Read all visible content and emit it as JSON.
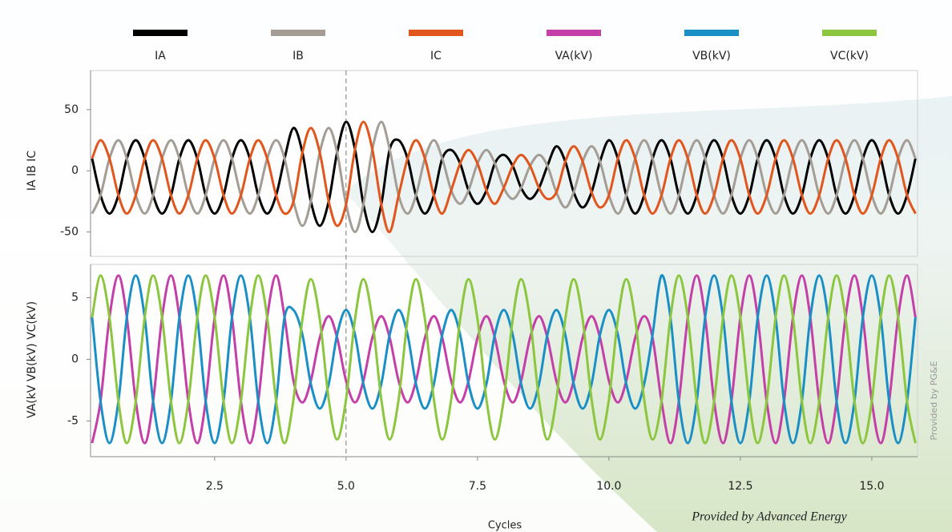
{
  "chart_data": [
    {
      "type": "line",
      "ylabel": "IA IB IC",
      "x": [
        0.17,
        0.33,
        0.5,
        0.67,
        0.83,
        1,
        1.17,
        1.33,
        1.5,
        1.67,
        1.83,
        2,
        2.17,
        2.33,
        2.5,
        2.67,
        2.83,
        3,
        3.17,
        3.33,
        3.5,
        3.67,
        3.83,
        4,
        4.17,
        4.33,
        4.5,
        4.67,
        4.83,
        5,
        5.17,
        5.33,
        5.5,
        5.67,
        5.83,
        6,
        6.17,
        6.33,
        6.5,
        6.67,
        6.83,
        7,
        7.17,
        7.33,
        7.5,
        7.67,
        7.83,
        8,
        8.17,
        8.33,
        8.5,
        8.67,
        8.83,
        9,
        9.17,
        9.33,
        9.5,
        9.67,
        9.83,
        10,
        10.17,
        10.33,
        10.5,
        10.67,
        10.83,
        11,
        11.17,
        11.33,
        11.5,
        11.67,
        11.83,
        12,
        12.17,
        12.33,
        12.5,
        12.67,
        12.83,
        13,
        13.17,
        13.33,
        13.5,
        13.67,
        13.83,
        14,
        14.17,
        14.33,
        14.5,
        14.67,
        14.83,
        15,
        15.17,
        15.33,
        15.5,
        15.67,
        15.83
      ],
      "series": [
        {
          "name": "IA",
          "color": "#000000",
          "values": [
            10,
            -20,
            -35,
            -20,
            10,
            25,
            10,
            -20,
            -35,
            -20,
            10,
            25,
            10,
            -20,
            -35,
            -20,
            10,
            25,
            10,
            -20,
            -35,
            -20,
            10,
            35,
            15,
            -25,
            -45,
            -25,
            15,
            40,
            17.5,
            -27.5,
            -50,
            -27.5,
            17.5,
            25,
            10,
            -20,
            -35,
            -20,
            10,
            17,
            6,
            -16,
            -27,
            -16,
            6,
            13,
            4,
            -14,
            -23,
            -14,
            4,
            20,
            7.5,
            -17.5,
            -30,
            -17.5,
            7.5,
            25,
            10,
            -20,
            -35,
            -20,
            10,
            25,
            10,
            -20,
            -35,
            -20,
            10,
            25,
            10,
            -20,
            -35,
            -20,
            10,
            25,
            10,
            -20,
            -35,
            -20,
            10,
            25,
            10,
            -20,
            -35,
            -20,
            10,
            25,
            10,
            -20,
            -35,
            -20,
            10
          ]
        },
        {
          "name": "IB",
          "color": "#a39d95",
          "values": [
            -35,
            -20,
            10,
            25,
            10,
            -20,
            -35,
            -20,
            10,
            25,
            10,
            -20,
            -35,
            -20,
            10,
            25,
            10,
            -20,
            -35,
            -20,
            10,
            25,
            10,
            -25,
            -45,
            -25,
            15,
            35,
            15,
            -27.5,
            -50,
            -27.5,
            17.5,
            40,
            17.5,
            -20,
            -35,
            -20,
            10,
            25,
            10,
            -16,
            -27,
            -16,
            6,
            17,
            6,
            -14,
            -23,
            -14,
            4,
            13,
            4,
            -17.5,
            -30,
            -17.5,
            7.5,
            20,
            7.5,
            -20,
            -35,
            -20,
            10,
            25,
            10,
            -20,
            -35,
            -20,
            10,
            25,
            10,
            -20,
            -35,
            -20,
            10,
            25,
            10,
            -20,
            -35,
            -20,
            10,
            25,
            10,
            -20,
            -35,
            -20,
            10,
            25,
            10,
            -20,
            -35,
            -20,
            10,
            25,
            10
          ]
        },
        {
          "name": "IC",
          "color": "#e0561c",
          "values": [
            10,
            25,
            10,
            -20,
            -35,
            -20,
            10,
            25,
            10,
            -20,
            -35,
            -20,
            10,
            25,
            10,
            -20,
            -35,
            -20,
            10,
            25,
            10,
            -20,
            -35,
            -25,
            15,
            35,
            15,
            -25,
            -45,
            -27.5,
            17.5,
            40,
            17.5,
            -27.5,
            -50,
            -20,
            10,
            25,
            10,
            -20,
            -35,
            -16,
            6,
            17,
            6,
            -16,
            -27,
            -14,
            4,
            13,
            4,
            -14,
            -23,
            -17.5,
            7.5,
            20,
            7.5,
            -17.5,
            -30,
            -20,
            10,
            25,
            10,
            -20,
            -35,
            -20,
            10,
            25,
            10,
            -20,
            -35,
            -20,
            10,
            25,
            10,
            -20,
            -35,
            -20,
            10,
            25,
            10,
            -20,
            -35,
            -20,
            10,
            25,
            10,
            -20,
            -35,
            -20,
            10,
            25,
            10,
            -20,
            -35
          ]
        }
      ],
      "xlim": [
        0.14,
        15.87
      ],
      "ylim": [
        -70,
        82
      ],
      "yticks": [
        -50,
        0,
        50
      ],
      "vline": 5
    },
    {
      "type": "line",
      "ylabel": "VA(kV VB(kV) VC(kV)",
      "xlabel": "Cycles",
      "x": [
        0.17,
        0.33,
        0.5,
        0.67,
        0.83,
        1,
        1.17,
        1.33,
        1.5,
        1.67,
        1.83,
        2,
        2.17,
        2.33,
        2.5,
        2.67,
        2.83,
        3,
        3.17,
        3.33,
        3.5,
        3.67,
        3.83,
        4,
        4.17,
        4.33,
        4.5,
        4.67,
        4.83,
        5,
        5.17,
        5.33,
        5.5,
        5.67,
        5.83,
        6,
        6.17,
        6.33,
        6.5,
        6.67,
        6.83,
        7,
        7.17,
        7.33,
        7.5,
        7.67,
        7.83,
        8,
        8.17,
        8.33,
        8.5,
        8.67,
        8.83,
        9,
        9.17,
        9.33,
        9.5,
        9.67,
        9.83,
        10,
        10.17,
        10.33,
        10.5,
        10.67,
        10.83,
        11,
        11.17,
        11.33,
        11.5,
        11.67,
        11.83,
        12,
        12.17,
        12.33,
        12.5,
        12.67,
        12.83,
        13,
        13.17,
        13.33,
        13.5,
        13.67,
        13.83,
        14,
        14.17,
        14.33,
        14.5,
        14.67,
        14.83,
        15,
        15.17,
        15.33,
        15.5,
        15.67,
        15.83
      ],
      "series": [
        {
          "name": "VA(kV)",
          "color": "#c43fa8",
          "values": [
            -6.8,
            -3.4,
            3.4,
            6.8,
            3.4,
            -3.4,
            -6.8,
            -3.4,
            3.4,
            6.8,
            3.4,
            -3.4,
            -6.8,
            -3.4,
            3.4,
            6.8,
            3.4,
            -3.4,
            -6.8,
            -3.4,
            3.4,
            6.8,
            3.4,
            -1.75,
            -3.5,
            -1.75,
            1.75,
            3.5,
            1.75,
            -1.75,
            -3.5,
            -1.75,
            1.75,
            3.5,
            1.75,
            -1.75,
            -3.5,
            -1.75,
            1.75,
            3.5,
            1.75,
            -1.75,
            -3.5,
            -1.75,
            1.75,
            3.5,
            1.75,
            -1.75,
            -3.5,
            -1.75,
            1.75,
            3.5,
            1.75,
            -1.75,
            -3.5,
            -1.75,
            1.75,
            3.5,
            1.75,
            -1.75,
            -3.5,
            -1.75,
            1.75,
            3.5,
            1.75,
            -3.4,
            -6.8,
            -3.4,
            3.4,
            6.8,
            3.4,
            -3.4,
            -6.8,
            -3.4,
            3.4,
            6.8,
            3.4,
            -3.4,
            -6.8,
            -3.4,
            3.4,
            6.8,
            3.4,
            -3.4,
            -6.8,
            -3.4,
            3.4,
            6.8,
            3.4,
            -3.4,
            -6.8,
            -3.4,
            3.4,
            6.8,
            3.4
          ]
        },
        {
          "name": "VB(kV)",
          "color": "#1a8fc6",
          "values": [
            3.4,
            -3.4,
            -6.8,
            -3.4,
            3.4,
            6.8,
            3.4,
            -3.4,
            -6.8,
            -3.4,
            3.4,
            6.8,
            3.4,
            -3.4,
            -6.8,
            -3.4,
            3.4,
            6.8,
            3.4,
            -3.4,
            -6.8,
            -3.4,
            3.4,
            4,
            2,
            -2,
            -4,
            -2,
            2,
            4,
            2,
            -2,
            -4,
            -2,
            2,
            4,
            2,
            -2,
            -4,
            -2,
            2,
            4,
            2,
            -2,
            -4,
            -2,
            2,
            4,
            2,
            -2,
            -4,
            -2,
            2,
            4,
            2,
            -2,
            -4,
            -2,
            2,
            4,
            2,
            -2,
            -4,
            -2,
            2,
            6.8,
            3.4,
            -3.4,
            -6.8,
            -3.4,
            3.4,
            6.8,
            3.4,
            -3.4,
            -6.8,
            -3.4,
            3.4,
            6.8,
            3.4,
            -3.4,
            -6.8,
            -3.4,
            3.4,
            6.8,
            3.4,
            -3.4,
            -6.8,
            -3.4,
            3.4,
            6.8,
            3.4,
            -3.4,
            -6.8,
            -3.4,
            3.4
          ]
        },
        {
          "name": "VC(kV)",
          "color": "#8cc63f",
          "values": [
            3.4,
            6.8,
            3.4,
            -3.4,
            -6.8,
            -3.4,
            3.4,
            6.8,
            3.4,
            -3.4,
            -6.8,
            -3.4,
            3.4,
            6.8,
            3.4,
            -3.4,
            -6.8,
            -3.4,
            3.4,
            6.8,
            3.4,
            -3.4,
            -6.8,
            -3.25,
            3.25,
            6.5,
            3.25,
            -3.25,
            -6.5,
            -3.25,
            3.25,
            6.5,
            3.25,
            -3.25,
            -6.5,
            -3.25,
            3.25,
            6.5,
            3.25,
            -3.25,
            -6.5,
            -3.25,
            3.25,
            6.5,
            3.25,
            -3.25,
            -6.5,
            -3.25,
            3.25,
            6.5,
            3.25,
            -3.25,
            -6.5,
            -3.25,
            3.25,
            6.5,
            3.25,
            -3.25,
            -6.5,
            -3.25,
            3.25,
            6.5,
            3.25,
            -3.25,
            -6.5,
            -3.4,
            3.4,
            6.8,
            3.4,
            -3.4,
            -6.8,
            -3.4,
            3.4,
            6.8,
            3.4,
            -3.4,
            -6.8,
            -3.4,
            3.4,
            6.8,
            3.4,
            -3.4,
            -6.8,
            -3.4,
            3.4,
            6.8,
            3.4,
            -3.4,
            -6.8,
            -3.4,
            3.4,
            6.8,
            3.4,
            -3.4,
            -6.8
          ]
        }
      ],
      "xlim": [
        0.14,
        15.87
      ],
      "ylim": [
        -7.9,
        7.7
      ],
      "yticks": [
        -5,
        0,
        5
      ],
      "xticks": [
        2.5,
        {
          "value": 5,
          "label": "5.0"
        },
        7.5,
        {
          "value": 10,
          "label": "10.0"
        },
        12.5,
        {
          "value": 15,
          "label": "15.0"
        }
      ],
      "vline": 5,
      "annotations": [
        "Provided by Advanced Energy",
        "Provided by PG&E"
      ]
    }
  ]
}
